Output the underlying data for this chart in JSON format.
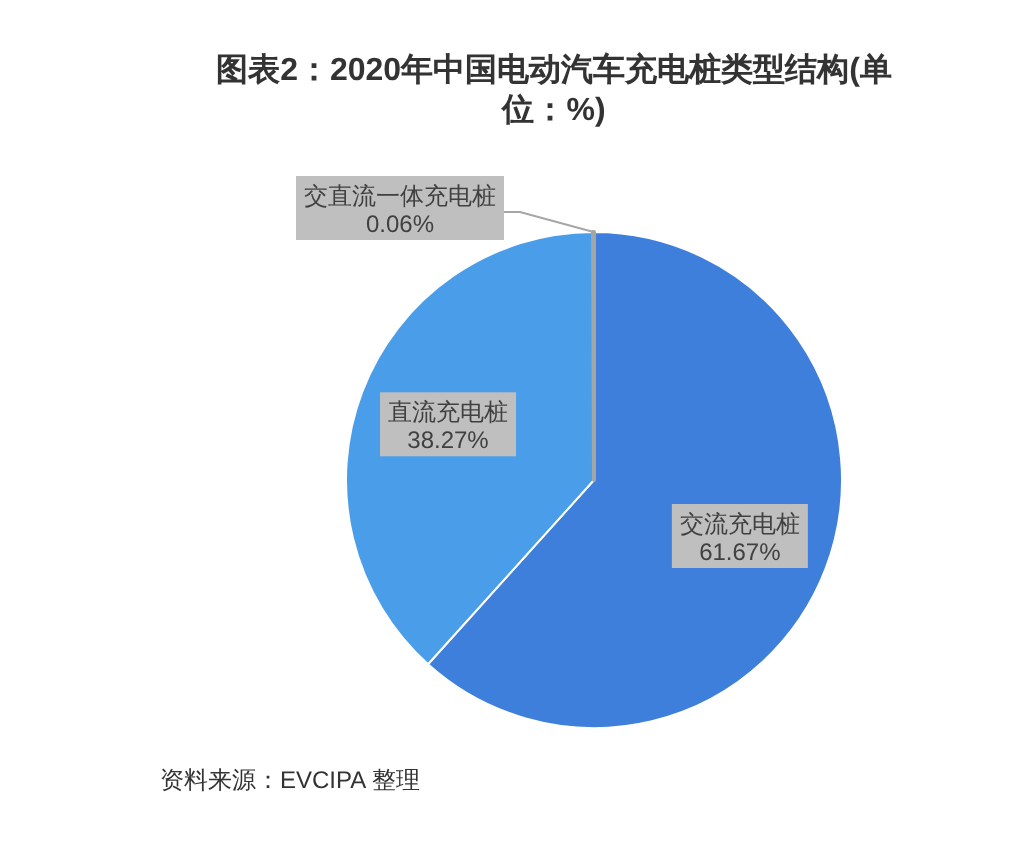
{
  "chart_data": {
    "type": "pie",
    "title": "图表2：2020年中国电动汽车充电桩类型结构(单位：%)",
    "categories": [
      "交流充电桩",
      "直流充电桩",
      "交直流一体充电桩"
    ],
    "values": [
      61.67,
      38.27,
      0.06
    ],
    "colors": [
      "#3d7fdb",
      "#4a9de8",
      "#a5a5a5"
    ],
    "value_labels": [
      "61.67%",
      "38.27%",
      "0.06%"
    ],
    "annotations": [
      "资料来源：EVCIPA 整理"
    ]
  }
}
